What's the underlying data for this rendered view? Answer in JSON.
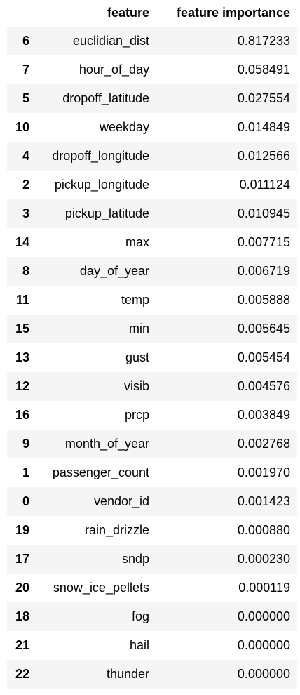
{
  "table": {
    "headers": {
      "index": "",
      "feature": "feature",
      "importance": "feature importance"
    },
    "rows": [
      {
        "index": "6",
        "feature": "euclidian_dist",
        "importance": "0.817233"
      },
      {
        "index": "7",
        "feature": "hour_of_day",
        "importance": "0.058491"
      },
      {
        "index": "5",
        "feature": "dropoff_latitude",
        "importance": "0.027554"
      },
      {
        "index": "10",
        "feature": "weekday",
        "importance": "0.014849"
      },
      {
        "index": "4",
        "feature": "dropoff_longitude",
        "importance": "0.012566"
      },
      {
        "index": "2",
        "feature": "pickup_longitude",
        "importance": "0.011124"
      },
      {
        "index": "3",
        "feature": "pickup_latitude",
        "importance": "0.010945"
      },
      {
        "index": "14",
        "feature": "max",
        "importance": "0.007715"
      },
      {
        "index": "8",
        "feature": "day_of_year",
        "importance": "0.006719"
      },
      {
        "index": "11",
        "feature": "temp",
        "importance": "0.005888"
      },
      {
        "index": "15",
        "feature": "min",
        "importance": "0.005645"
      },
      {
        "index": "13",
        "feature": "gust",
        "importance": "0.005454"
      },
      {
        "index": "12",
        "feature": "visib",
        "importance": "0.004576"
      },
      {
        "index": "16",
        "feature": "prcp",
        "importance": "0.003849"
      },
      {
        "index": "9",
        "feature": "month_of_year",
        "importance": "0.002768"
      },
      {
        "index": "1",
        "feature": "passenger_count",
        "importance": "0.001970"
      },
      {
        "index": "0",
        "feature": "vendor_id",
        "importance": "0.001423"
      },
      {
        "index": "19",
        "feature": "rain_drizzle",
        "importance": "0.000880"
      },
      {
        "index": "17",
        "feature": "sndp",
        "importance": "0.000230"
      },
      {
        "index": "20",
        "feature": "snow_ice_pellets",
        "importance": "0.000119"
      },
      {
        "index": "18",
        "feature": "fog",
        "importance": "0.000000"
      },
      {
        "index": "21",
        "feature": "hail",
        "importance": "0.000000"
      },
      {
        "index": "22",
        "feature": "thunder",
        "importance": "0.000000"
      }
    ]
  }
}
